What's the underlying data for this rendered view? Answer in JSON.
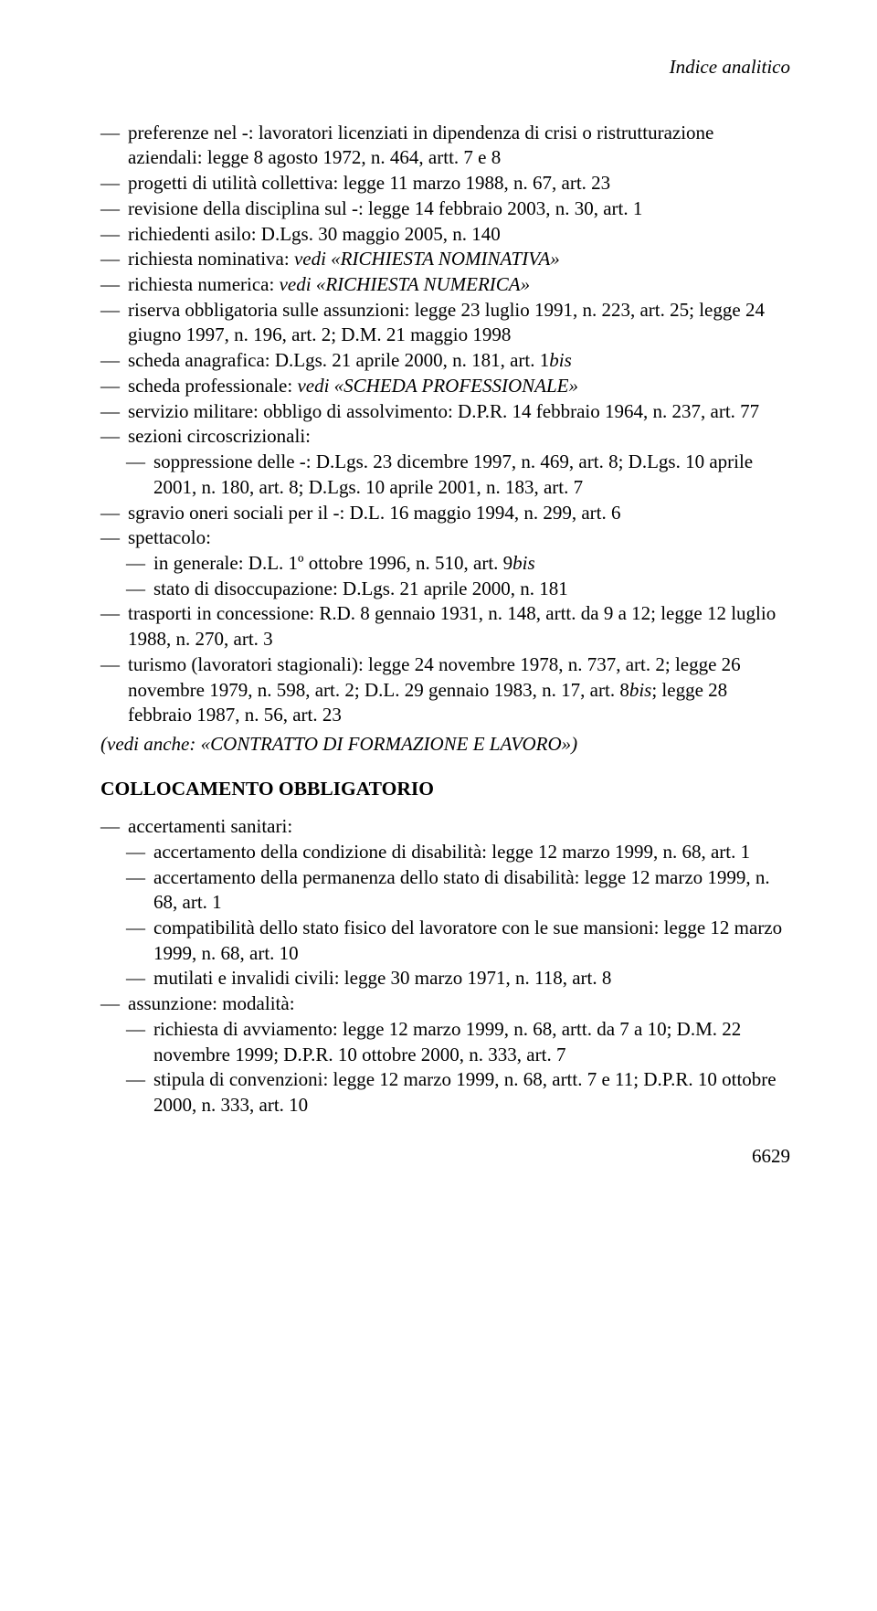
{
  "header": "Indice analitico",
  "entries": [
    {
      "level": 1,
      "segs": [
        {
          "t": "preferenze nel -: lavoratori licenziati in dipendenza di crisi o ristrutturazione aziendali: legge 8 agosto 1972, n. 464, artt. 7 e 8"
        }
      ]
    },
    {
      "level": 1,
      "segs": [
        {
          "t": "progetti di utilità collettiva: legge 11 marzo 1988, n. 67, art. 23"
        }
      ]
    },
    {
      "level": 1,
      "segs": [
        {
          "t": "revisione della disciplina sul -: legge 14 febbraio 2003, n. 30, art. 1"
        }
      ]
    },
    {
      "level": 1,
      "segs": [
        {
          "t": "richiedenti asilo: D.Lgs. 30 maggio 2005, n. 140"
        }
      ]
    },
    {
      "level": 1,
      "segs": [
        {
          "t": "richiesta nominativa: "
        },
        {
          "t": "vedi «RICHIESTA NOMINATIVA»",
          "i": true
        }
      ]
    },
    {
      "level": 1,
      "segs": [
        {
          "t": "richiesta numerica: "
        },
        {
          "t": "vedi «RICHIESTA NUMERICA»",
          "i": true
        }
      ]
    },
    {
      "level": 1,
      "segs": [
        {
          "t": "riserva obbligatoria sulle assunzioni: legge 23 luglio 1991, n. 223, art. 25; legge 24 giugno 1997, n. 196, art. 2; D.M. 21 maggio 1998"
        }
      ]
    },
    {
      "level": 1,
      "segs": [
        {
          "t": "scheda anagrafica: D.Lgs. 21 aprile 2000, n. 181, art. 1"
        },
        {
          "t": "bis",
          "i": true
        }
      ]
    },
    {
      "level": 1,
      "segs": [
        {
          "t": "scheda professionale: "
        },
        {
          "t": "vedi «SCHEDA PROFESSIONALE»",
          "i": true
        }
      ]
    },
    {
      "level": 1,
      "segs": [
        {
          "t": "servizio militare: obbligo di assolvimento: D.P.R. 14 febbraio 1964, n. 237, art. 77"
        }
      ]
    },
    {
      "level": 1,
      "segs": [
        {
          "t": "sezioni circoscrizionali:"
        }
      ]
    },
    {
      "level": 2,
      "segs": [
        {
          "t": "soppressione delle -: D.Lgs. 23 dicembre 1997, n. 469, art. 8; D.Lgs. 10 aprile 2001, n. 180, art. 8; D.Lgs. 10 aprile 2001, n. 183, art. 7"
        }
      ]
    },
    {
      "level": 1,
      "segs": [
        {
          "t": "sgravio oneri sociali per il -: D.L. 16 maggio 1994, n. 299, art. 6"
        }
      ]
    },
    {
      "level": 1,
      "segs": [
        {
          "t": "spettacolo:"
        }
      ]
    },
    {
      "level": 2,
      "segs": [
        {
          "t": "in generale: D.L. 1º ottobre 1996, n. 510, art. 9"
        },
        {
          "t": "bis",
          "i": true
        }
      ]
    },
    {
      "level": 2,
      "segs": [
        {
          "t": "stato di disoccupazione: D.Lgs. 21 aprile 2000, n. 181"
        }
      ]
    },
    {
      "level": 1,
      "segs": [
        {
          "t": "trasporti in concessione: R.D. 8 gennaio 1931, n. 148, artt. da 9 a 12; legge 12 luglio 1988, n. 270, art. 3"
        }
      ]
    },
    {
      "level": 1,
      "segs": [
        {
          "t": "turismo (lavoratori stagionali): legge 24 novembre 1978, n. 737, art. 2; legge 26 novembre 1979, n. 598, art. 2; D.L. 29 gennaio 1983, n. 17, art. 8"
        },
        {
          "t": "bis",
          "i": true
        },
        {
          "t": "; legge 28 febbraio 1987, n. 56, art. 23"
        }
      ]
    }
  ],
  "see_also": "(vedi anche: «CONTRATTO DI FORMAZIONE E LAVORO»)",
  "heading2": "COLLOCAMENTO OBBLIGATORIO",
  "entries2": [
    {
      "level": 1,
      "segs": [
        {
          "t": "accertamenti sanitari:"
        }
      ]
    },
    {
      "level": 2,
      "segs": [
        {
          "t": "accertamento della condizione di disabilità: legge 12 marzo 1999, n. 68, art. 1"
        }
      ]
    },
    {
      "level": 2,
      "segs": [
        {
          "t": "accertamento della permanenza dello stato di disabilità: legge 12 marzo 1999, n. 68, art. 1"
        }
      ]
    },
    {
      "level": 2,
      "segs": [
        {
          "t": "compatibilità dello stato fisico del lavoratore con le sue mansioni: legge 12 marzo 1999, n. 68, art. 10"
        }
      ]
    },
    {
      "level": 2,
      "segs": [
        {
          "t": "mutilati e invalidi civili: legge 30 marzo 1971, n. 118, art. 8"
        }
      ]
    },
    {
      "level": 1,
      "segs": [
        {
          "t": "assunzione: modalità:"
        }
      ]
    },
    {
      "level": 2,
      "segs": [
        {
          "t": "richiesta di avviamento: legge 12 marzo 1999, n. 68, artt. da 7 a 10; D.M. 22 novembre 1999; D.P.R. 10 ottobre 2000, n. 333, art. 7"
        }
      ]
    },
    {
      "level": 2,
      "segs": [
        {
          "t": "stipula di convenzioni: legge 12 marzo 1999, n. 68, artt. 7 e 11; D.P.R. 10 ottobre 2000, n. 333, art. 10"
        }
      ]
    }
  ],
  "page_number": "6629",
  "dash": "—"
}
